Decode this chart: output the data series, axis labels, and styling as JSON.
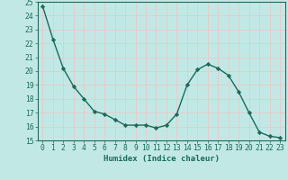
{
  "x": [
    0,
    1,
    2,
    3,
    4,
    5,
    6,
    7,
    8,
    9,
    10,
    11,
    12,
    13,
    14,
    15,
    16,
    17,
    18,
    19,
    20,
    21,
    22,
    23
  ],
  "y": [
    24.7,
    22.3,
    20.2,
    18.9,
    18.0,
    17.1,
    16.9,
    16.5,
    16.1,
    16.1,
    16.1,
    15.9,
    16.1,
    16.9,
    19.0,
    20.1,
    20.5,
    20.2,
    19.7,
    18.5,
    17.0,
    15.6,
    15.3,
    15.2
  ],
  "line_color": "#1a6b5a",
  "marker": "D",
  "markersize": 2.2,
  "linewidth": 1.0,
  "bg_color": "#c2e8e5",
  "grid_color": "#e8c8c8",
  "xlabel": "Humidex (Indice chaleur)",
  "ylim": [
    15,
    25
  ],
  "xlim_min": -0.5,
  "xlim_max": 23.5,
  "yticks": [
    15,
    16,
    17,
    18,
    19,
    20,
    21,
    22,
    23,
    24,
    25
  ],
  "xticks": [
    0,
    1,
    2,
    3,
    4,
    5,
    6,
    7,
    8,
    9,
    10,
    11,
    12,
    13,
    14,
    15,
    16,
    17,
    18,
    19,
    20,
    21,
    22,
    23
  ],
  "xlabel_fontsize": 6.5,
  "tick_fontsize": 5.8
}
